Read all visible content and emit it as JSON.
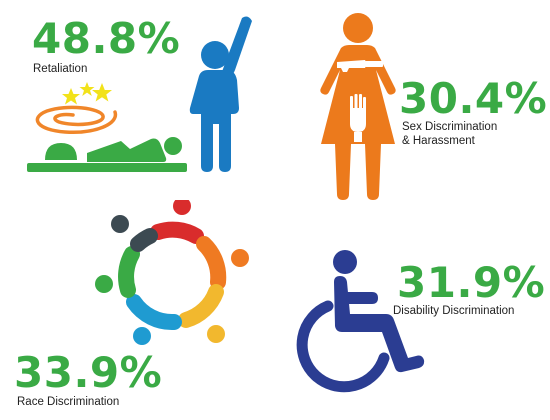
{
  "colors": {
    "percent_green": "#3aaa45",
    "person_blue": "#1a7ac2",
    "woman_orange": "#ec7a1c",
    "wheelchair_navy": "#2b3d92",
    "star_yellow": "#f2e21a",
    "swirl_orange": "#f0862a"
  },
  "items": [
    {
      "value": "48.8%",
      "label": "Retaliation",
      "icon": "fallen-person-and-standing-person-icon"
    },
    {
      "value": "30.4%",
      "label_line1": "Sex Discrimination",
      "label_line2": "& Harassment",
      "icon": "woman-being-touched-icon"
    },
    {
      "value": "33.9%",
      "label": "Race Discrimination",
      "icon": "diverse-circle-of-people-icon"
    },
    {
      "value": "31.9%",
      "label": "Disability Discrimination",
      "icon": "wheelchair-icon"
    }
  ]
}
